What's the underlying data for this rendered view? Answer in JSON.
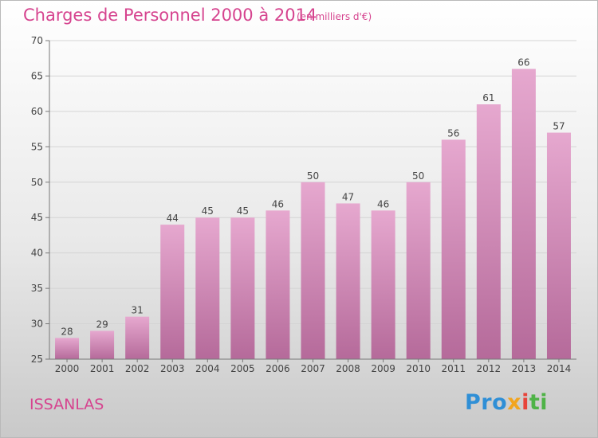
{
  "chart_data": {
    "type": "bar",
    "title": "Charges de Personnel 2000 à 2014",
    "subtitle": "(en milliers d'€)",
    "categories": [
      "2000",
      "2001",
      "2002",
      "2003",
      "2004",
      "2005",
      "2006",
      "2007",
      "2008",
      "2009",
      "2010",
      "2011",
      "2012",
      "2013",
      "2014"
    ],
    "values": [
      28,
      29,
      31,
      44,
      45,
      45,
      46,
      50,
      47,
      46,
      50,
      56,
      61,
      66,
      57
    ],
    "ylim": [
      25,
      70
    ],
    "yticks": [
      25,
      30,
      35,
      40,
      45,
      50,
      55,
      60,
      65,
      70
    ],
    "grid": true,
    "bar_color": "#d67fb4",
    "title_color": "#d6448f"
  },
  "commune": "ISSANLAS",
  "logo": {
    "parts": [
      "Pro",
      "x",
      "i",
      "ti"
    ],
    "colors": [
      "#2f8fd6",
      "#f2a51f",
      "#e7443a",
      "#4fb347"
    ]
  }
}
